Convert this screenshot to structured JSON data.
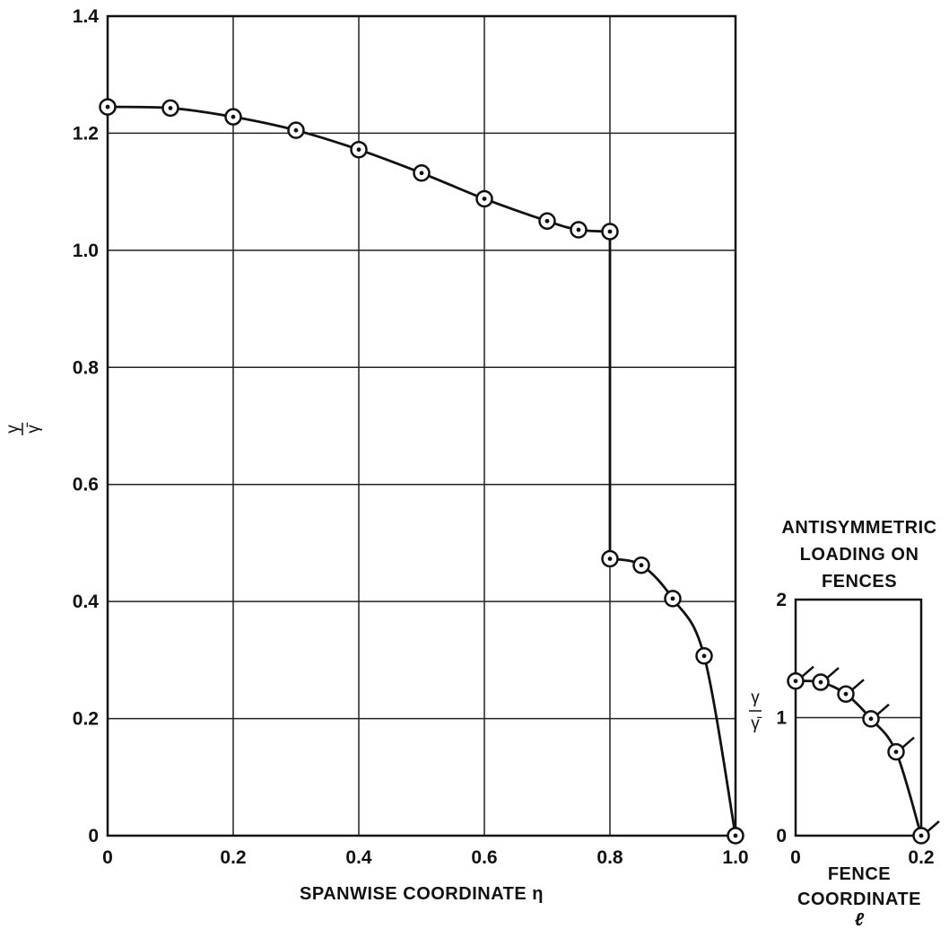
{
  "chart_data": [
    {
      "type": "line",
      "xlabel": "SPANWISE COORDINATE η",
      "ylabel_num": "γ",
      "ylabel_den": "γ̄",
      "xlim": [
        0,
        1.0
      ],
      "ylim": [
        0,
        1.4
      ],
      "x_ticks": [
        "0",
        "0.2",
        "0.4",
        "0.6",
        "0.8",
        "1.0"
      ],
      "y_ticks": [
        "0",
        "0.2",
        "0.4",
        "0.6",
        "0.8",
        "1.0",
        "1.2",
        "1.4"
      ],
      "grid": true,
      "series": [
        {
          "x": [
            0,
            0.1,
            0.2,
            0.3,
            0.4,
            0.5,
            0.6,
            0.7,
            0.75,
            0.8,
            0.8,
            0.85,
            0.9,
            0.95,
            1.0
          ],
          "y": [
            1.245,
            1.243,
            1.228,
            1.205,
            1.172,
            1.132,
            1.088,
            1.05,
            1.035,
            1.032,
            0.473,
            0.462,
            0.405,
            0.307,
            0.0
          ]
        }
      ]
    },
    {
      "type": "line",
      "title": "ANTISYMMETRIC LOADING ON FENCES",
      "title_lines": [
        "ANTISYMMETRIC",
        "LOADING ON",
        "FENCES"
      ],
      "xlabel_lines": [
        "FENCE",
        "COORDINATE"
      ],
      "xlabel_symbol": "ℓ",
      "ylabel_num": "γ",
      "ylabel_den": "γ̄",
      "xlim": [
        0,
        0.2
      ],
      "ylim": [
        0,
        2
      ],
      "x_ticks": [
        "0",
        "0.2"
      ],
      "y_ticks": [
        "0",
        "1",
        "2"
      ],
      "grid": true,
      "series": [
        {
          "x": [
            0,
            0.04,
            0.08,
            0.12,
            0.16,
            0.2
          ],
          "y": [
            1.31,
            1.3,
            1.2,
            0.99,
            0.71,
            0.0
          ]
        }
      ]
    }
  ]
}
